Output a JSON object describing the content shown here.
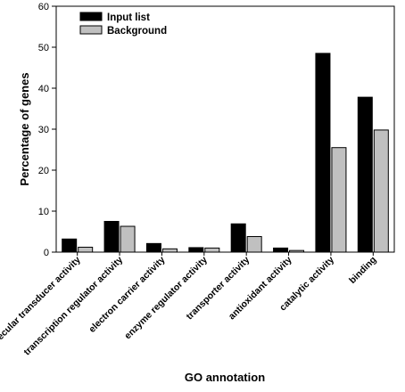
{
  "chart_data": {
    "type": "bar",
    "title": "",
    "xlabel": "GO annotation",
    "ylabel": "Percentage of genes",
    "ylim": [
      0,
      60
    ],
    "yticks": [
      0,
      10,
      20,
      30,
      40,
      50,
      60
    ],
    "grid": false,
    "legend_position": "top-left",
    "categories": [
      "molecular transducer activity",
      "transcription regulator activity",
      "electron carrier activity",
      "enzyme regulator activity",
      "transporter activity",
      "antioxidant activity",
      "catalytic activity",
      "binding"
    ],
    "series": [
      {
        "name": "Input list",
        "color": "#000000",
        "values": [
          3.2,
          7.5,
          2.1,
          1.1,
          6.9,
          1.0,
          48.5,
          37.8
        ]
      },
      {
        "name": "Background",
        "color": "#c0c0c0",
        "values": [
          1.2,
          6.3,
          0.8,
          1.0,
          3.8,
          0.4,
          25.5,
          29.8
        ]
      }
    ]
  }
}
